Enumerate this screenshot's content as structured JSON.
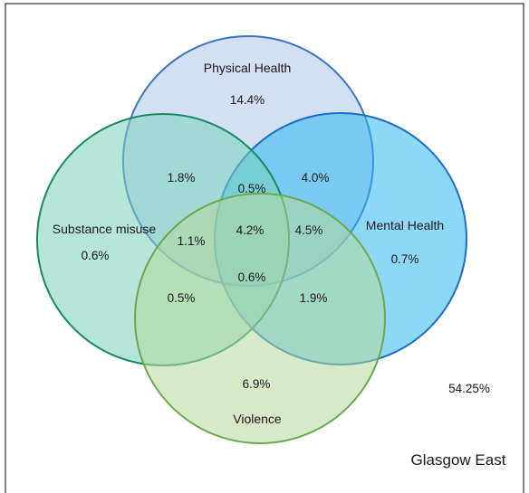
{
  "sets": [
    {
      "key": "physical",
      "name": "Physical Health",
      "fill": "#aec4ea",
      "stroke": "#3b74c4"
    },
    {
      "key": "mental",
      "name": "Mental Health",
      "fill": "#2fb6f0",
      "stroke": "#1a6fc0"
    },
    {
      "key": "substance",
      "name": "Substance misuse",
      "fill": "#7ad1bb",
      "stroke": "#178a63"
    },
    {
      "key": "violence",
      "name": "Violence",
      "fill": "#b6d89a",
      "stroke": "#6aaa4e"
    }
  ],
  "regions": {
    "physical_only": "14.4%",
    "mental_only": "0.7%",
    "substance_only": "0.6%",
    "violence_only": "6.9%",
    "physical_substance": "1.8%",
    "physical_mental": "4.0%",
    "physical_mental_substance": "0.5%",
    "all_four": "4.2%",
    "physical_mental_violence": "4.5%",
    "physical_substance_violence": "1.1%",
    "mental_substance_violence": "0.6%",
    "substance_violence": "0.5%",
    "mental_violence": "1.9%"
  },
  "outside": "54.25%",
  "place": "Glasgow East"
}
